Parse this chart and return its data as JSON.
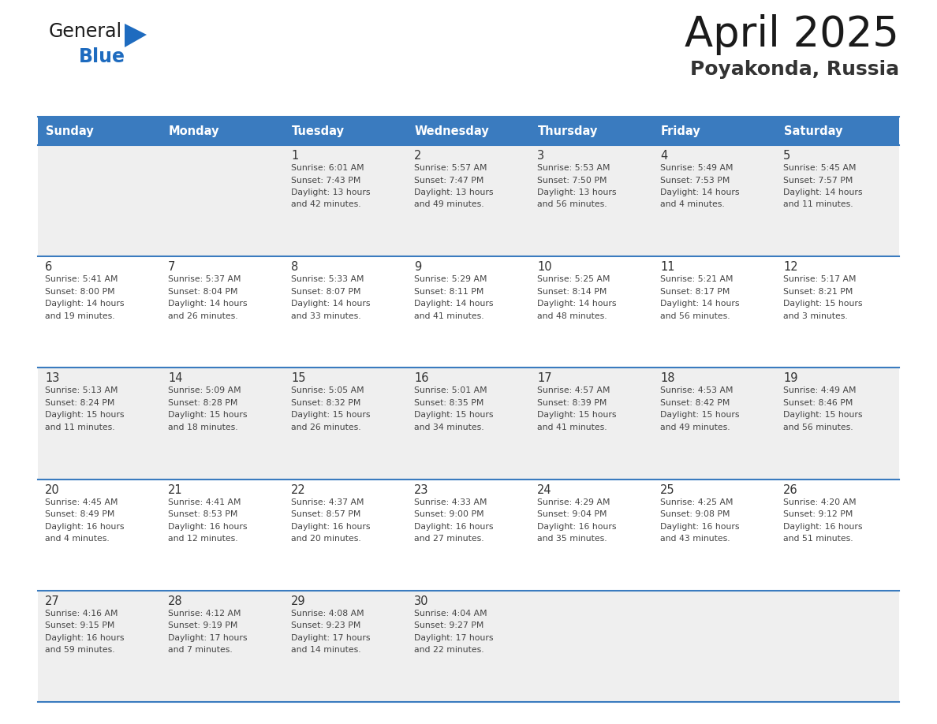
{
  "title": "April 2025",
  "subtitle": "Poyakonda, Russia",
  "days_of_week": [
    "Sunday",
    "Monday",
    "Tuesday",
    "Wednesday",
    "Thursday",
    "Friday",
    "Saturday"
  ],
  "header_bg": "#3a7bbf",
  "header_text": "#ffffff",
  "row_bgs": [
    "#efefef",
    "#ffffff",
    "#efefef",
    "#ffffff",
    "#efefef"
  ],
  "cell_text_color": "#444444",
  "day_num_color": "#333333",
  "border_color": "#3a7bbf",
  "title_color": "#1a1a1a",
  "subtitle_color": "#333333",
  "calendar": [
    [
      {
        "day": null,
        "info": null
      },
      {
        "day": null,
        "info": null
      },
      {
        "day": 1,
        "info": "Sunrise: 6:01 AM\nSunset: 7:43 PM\nDaylight: 13 hours\nand 42 minutes."
      },
      {
        "day": 2,
        "info": "Sunrise: 5:57 AM\nSunset: 7:47 PM\nDaylight: 13 hours\nand 49 minutes."
      },
      {
        "day": 3,
        "info": "Sunrise: 5:53 AM\nSunset: 7:50 PM\nDaylight: 13 hours\nand 56 minutes."
      },
      {
        "day": 4,
        "info": "Sunrise: 5:49 AM\nSunset: 7:53 PM\nDaylight: 14 hours\nand 4 minutes."
      },
      {
        "day": 5,
        "info": "Sunrise: 5:45 AM\nSunset: 7:57 PM\nDaylight: 14 hours\nand 11 minutes."
      }
    ],
    [
      {
        "day": 6,
        "info": "Sunrise: 5:41 AM\nSunset: 8:00 PM\nDaylight: 14 hours\nand 19 minutes."
      },
      {
        "day": 7,
        "info": "Sunrise: 5:37 AM\nSunset: 8:04 PM\nDaylight: 14 hours\nand 26 minutes."
      },
      {
        "day": 8,
        "info": "Sunrise: 5:33 AM\nSunset: 8:07 PM\nDaylight: 14 hours\nand 33 minutes."
      },
      {
        "day": 9,
        "info": "Sunrise: 5:29 AM\nSunset: 8:11 PM\nDaylight: 14 hours\nand 41 minutes."
      },
      {
        "day": 10,
        "info": "Sunrise: 5:25 AM\nSunset: 8:14 PM\nDaylight: 14 hours\nand 48 minutes."
      },
      {
        "day": 11,
        "info": "Sunrise: 5:21 AM\nSunset: 8:17 PM\nDaylight: 14 hours\nand 56 minutes."
      },
      {
        "day": 12,
        "info": "Sunrise: 5:17 AM\nSunset: 8:21 PM\nDaylight: 15 hours\nand 3 minutes."
      }
    ],
    [
      {
        "day": 13,
        "info": "Sunrise: 5:13 AM\nSunset: 8:24 PM\nDaylight: 15 hours\nand 11 minutes."
      },
      {
        "day": 14,
        "info": "Sunrise: 5:09 AM\nSunset: 8:28 PM\nDaylight: 15 hours\nand 18 minutes."
      },
      {
        "day": 15,
        "info": "Sunrise: 5:05 AM\nSunset: 8:32 PM\nDaylight: 15 hours\nand 26 minutes."
      },
      {
        "day": 16,
        "info": "Sunrise: 5:01 AM\nSunset: 8:35 PM\nDaylight: 15 hours\nand 34 minutes."
      },
      {
        "day": 17,
        "info": "Sunrise: 4:57 AM\nSunset: 8:39 PM\nDaylight: 15 hours\nand 41 minutes."
      },
      {
        "day": 18,
        "info": "Sunrise: 4:53 AM\nSunset: 8:42 PM\nDaylight: 15 hours\nand 49 minutes."
      },
      {
        "day": 19,
        "info": "Sunrise: 4:49 AM\nSunset: 8:46 PM\nDaylight: 15 hours\nand 56 minutes."
      }
    ],
    [
      {
        "day": 20,
        "info": "Sunrise: 4:45 AM\nSunset: 8:49 PM\nDaylight: 16 hours\nand 4 minutes."
      },
      {
        "day": 21,
        "info": "Sunrise: 4:41 AM\nSunset: 8:53 PM\nDaylight: 16 hours\nand 12 minutes."
      },
      {
        "day": 22,
        "info": "Sunrise: 4:37 AM\nSunset: 8:57 PM\nDaylight: 16 hours\nand 20 minutes."
      },
      {
        "day": 23,
        "info": "Sunrise: 4:33 AM\nSunset: 9:00 PM\nDaylight: 16 hours\nand 27 minutes."
      },
      {
        "day": 24,
        "info": "Sunrise: 4:29 AM\nSunset: 9:04 PM\nDaylight: 16 hours\nand 35 minutes."
      },
      {
        "day": 25,
        "info": "Sunrise: 4:25 AM\nSunset: 9:08 PM\nDaylight: 16 hours\nand 43 minutes."
      },
      {
        "day": 26,
        "info": "Sunrise: 4:20 AM\nSunset: 9:12 PM\nDaylight: 16 hours\nand 51 minutes."
      }
    ],
    [
      {
        "day": 27,
        "info": "Sunrise: 4:16 AM\nSunset: 9:15 PM\nDaylight: 16 hours\nand 59 minutes."
      },
      {
        "day": 28,
        "info": "Sunrise: 4:12 AM\nSunset: 9:19 PM\nDaylight: 17 hours\nand 7 minutes."
      },
      {
        "day": 29,
        "info": "Sunrise: 4:08 AM\nSunset: 9:23 PM\nDaylight: 17 hours\nand 14 minutes."
      },
      {
        "day": 30,
        "info": "Sunrise: 4:04 AM\nSunset: 9:27 PM\nDaylight: 17 hours\nand 22 minutes."
      },
      {
        "day": null,
        "info": null
      },
      {
        "day": null,
        "info": null
      },
      {
        "day": null,
        "info": null
      }
    ]
  ],
  "logo_general": "General",
  "logo_blue": "Blue",
  "logo_color_general": "#1a1a1a",
  "logo_color_blue": "#1e6bbf",
  "logo_triangle_color": "#1e6bbf"
}
